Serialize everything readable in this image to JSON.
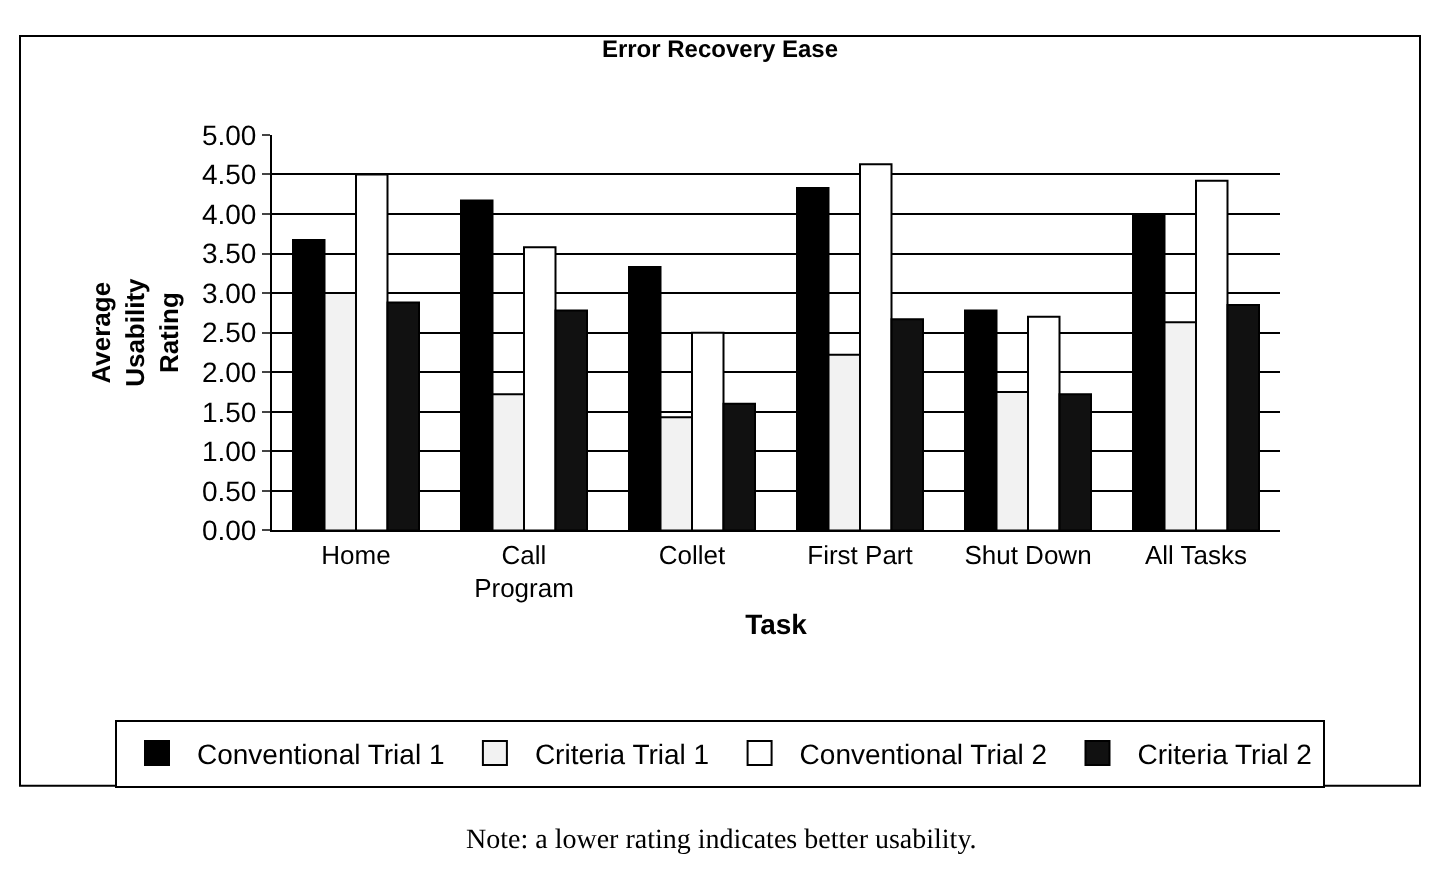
{
  "chart_data": {
    "type": "bar",
    "title": "Error Recovery Ease",
    "xlabel": "Task",
    "ylabel": "Average\nUsability\nRating",
    "categories": [
      "Home",
      "Call\nProgram",
      "Collet",
      "First Part",
      "Shut Down",
      "All Tasks"
    ],
    "series": [
      {
        "name": "Conventional Trial 1",
        "color": "#000000",
        "values": [
          3.67,
          4.17,
          3.33,
          4.33,
          2.78,
          4.0
        ]
      },
      {
        "name": "Criteria Trial 1",
        "color": "#f2f2f2",
        "values": [
          3.0,
          1.72,
          1.43,
          2.22,
          1.75,
          2.63
        ]
      },
      {
        "name": "Conventional Trial 2",
        "color": "#ffffff",
        "values": [
          4.5,
          3.58,
          2.5,
          4.63,
          2.7,
          4.42
        ]
      },
      {
        "name": "Criteria Trial 2",
        "color": "#111111",
        "values": [
          2.88,
          2.78,
          1.6,
          2.67,
          1.72,
          2.85
        ]
      }
    ],
    "ylim": [
      0,
      5
    ],
    "yticks": [
      {
        "value": 0,
        "label": "0.00"
      },
      {
        "value": 0.5,
        "label": "0.50"
      },
      {
        "value": 1,
        "label": "1.00"
      },
      {
        "value": 1.5,
        "label": "1.50"
      },
      {
        "value": 2,
        "label": "2.00"
      },
      {
        "value": 2.5,
        "label": "2.50"
      },
      {
        "value": 3,
        "label": "3.00"
      },
      {
        "value": 3.5,
        "label": "3.50"
      },
      {
        "value": 4,
        "label": "4.00"
      },
      {
        "value": 4.5,
        "label": "4.50"
      },
      {
        "value": 5,
        "label": "5.00"
      }
    ],
    "grid": "y",
    "legend": "bottom",
    "annotations": [
      "Note: a lower rating indicates better usability."
    ]
  }
}
